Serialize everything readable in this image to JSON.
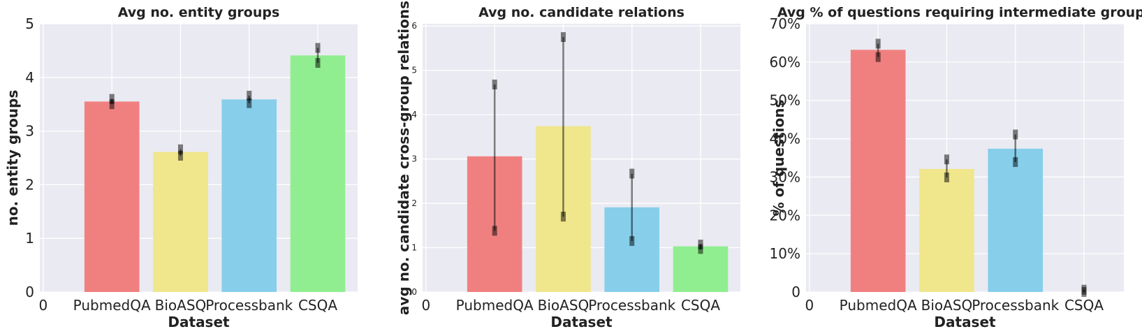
{
  "colors": {
    "background": "#eaeaf2",
    "grid": "#ffffff",
    "error_bar": "#000000",
    "PubmedQA": "#f08080",
    "BioASQ": "#f0e68c",
    "Processbank": "#87ceeb",
    "CSQA": "#90ee90"
  },
  "chart_data": [
    {
      "type": "bar",
      "title": "Avg no. entity groups",
      "xlabel": "Dataset",
      "ylabel": "no. entity groups",
      "x_tick_first": "0",
      "categories": [
        "PubmedQA",
        "BioASQ",
        "Processbank",
        "CSQA"
      ],
      "values": [
        3.55,
        2.61,
        3.59,
        4.41
      ],
      "error_low": [
        3.5,
        2.54,
        3.52,
        4.27
      ],
      "error_high": [
        3.6,
        2.66,
        3.66,
        4.55
      ],
      "ylim": [
        0,
        5
      ],
      "yticks": [
        0,
        1,
        2,
        3,
        4,
        5
      ],
      "ytick_labels": [
        "0",
        "1",
        "2",
        "3",
        "4",
        "5"
      ],
      "grid": true
    },
    {
      "type": "bar",
      "title": "Avg no. candidate relations",
      "xlabel": "Dataset",
      "ylabel": "avg no. candidate cross-group relations",
      "x_tick_first": "0",
      "categories": [
        "PubmedQA",
        "BioASQ",
        "Processbank",
        "CSQA"
      ],
      "values": [
        3.06,
        3.74,
        1.91,
        1.03
      ],
      "error_low": [
        1.38,
        1.7,
        1.15,
        0.97
      ],
      "error_high": [
        4.68,
        5.75,
        2.67,
        1.07
      ],
      "ylim": [
        0,
        6.05
      ],
      "yticks": [
        0,
        1,
        2,
        3,
        4,
        5,
        6
      ],
      "ytick_labels": [
        "0",
        "1",
        "2",
        "3",
        "4",
        "5",
        "6"
      ],
      "grid": true
    },
    {
      "type": "bar",
      "title": "Avg % of questions requiring intermediate groups",
      "xlabel": "Dataset",
      "ylabel": "% of questions",
      "x_tick_first": "0",
      "categories": [
        "PubmedQA",
        "BioASQ",
        "Processbank",
        "CSQA"
      ],
      "values": [
        0.632,
        0.321,
        0.374,
        0
      ],
      "error_low": [
        0.613,
        0.299,
        0.339,
        0
      ],
      "error_high": [
        0.648,
        0.346,
        0.411,
        0.006
      ],
      "ylim": [
        0,
        0.7
      ],
      "yticks": [
        0,
        0.1,
        0.2,
        0.3,
        0.4,
        0.5,
        0.6,
        0.7
      ],
      "ytick_labels": [
        "0",
        "10%",
        "20%",
        "30%",
        "40%",
        "50%",
        "60%",
        "70%"
      ],
      "grid": true
    }
  ]
}
